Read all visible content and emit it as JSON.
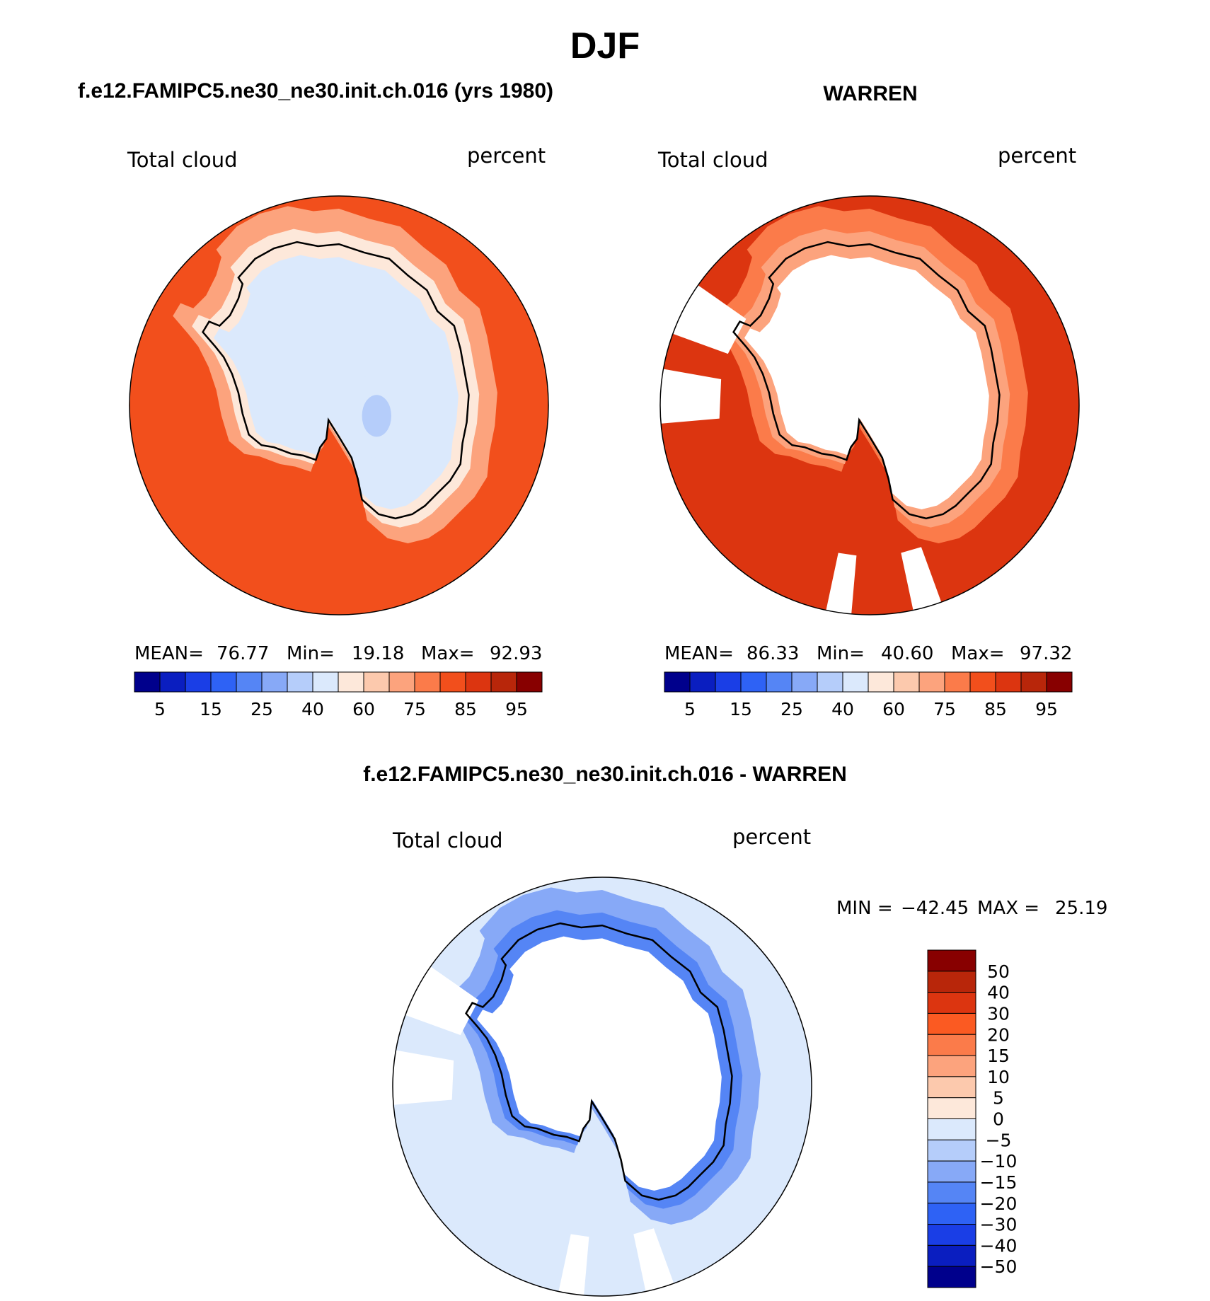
{
  "figure": {
    "title": "DJF"
  },
  "panels": [
    {
      "id": "model",
      "header": "f.e12.FAMIPC5.ne30_ne30.init.ch.016 (yrs 1980)",
      "left_label": "Total cloud",
      "right_label": "percent",
      "stats": {
        "mean_label": "MEAN=",
        "mean": "76.77",
        "min_label": "Min=",
        "min": "19.18",
        "max_label": "Max=",
        "max": "92.93"
      },
      "field": {
        "pole_value": 30,
        "coast_value": 58,
        "ocean_value": 84,
        "missing_sectors": false
      }
    },
    {
      "id": "obs",
      "header": "WARREN",
      "left_label": "Total cloud",
      "right_label": "percent",
      "stats": {
        "mean_label": "MEAN=",
        "mean": "86.33",
        "min_label": "Min=",
        "min": "40.60",
        "max_label": "Max=",
        "max": "97.32"
      },
      "field": {
        "pole_value": null,
        "coast_value": 70,
        "ocean_value": 88,
        "missing_sectors": true
      }
    },
    {
      "id": "diff",
      "header": "f.e12.FAMIPC5.ne30_ne30.init.ch.016 - WARREN",
      "left_label": "Total cloud",
      "right_label": "percent",
      "stats": {
        "min_label": "MIN =",
        "min": "−42.45",
        "max_label": "MAX =",
        "max": "25.19"
      },
      "field": {
        "pole_value": null,
        "coast_value": -18,
        "ocean_value": -3,
        "missing_sectors": true
      }
    }
  ],
  "colorbar_absolute": {
    "tick_labels": [
      "5",
      "15",
      "25",
      "40",
      "60",
      "75",
      "85",
      "95"
    ],
    "colors": [
      "#00008c",
      "#0a1ec0",
      "#1a3ee6",
      "#2e62f5",
      "#5585f5",
      "#87a9f7",
      "#b5cdfa",
      "#dbe9fc",
      "#fde8da",
      "#fcc9ad",
      "#fca37d",
      "#fb7b4a",
      "#f24f1c",
      "#dc3510",
      "#b8260a",
      "#880000"
    ]
  },
  "colorbar_difference": {
    "tick_labels": [
      "50",
      "40",
      "30",
      "20",
      "15",
      "10",
      "5",
      "0",
      "−5",
      "−10",
      "−15",
      "−20",
      "−30",
      "−40",
      "−50"
    ],
    "colors": [
      "#880000",
      "#b8260a",
      "#dc3510",
      "#fb5a22",
      "#fb7b4a",
      "#fca37d",
      "#fcc9ad",
      "#fde8da",
      "#dbe9fc",
      "#b5cdfa",
      "#87a9f7",
      "#5585f5",
      "#2e62f5",
      "#1a3ee6",
      "#0a1ec0",
      "#00008c"
    ]
  },
  "map": {
    "projection": "polar stereographic (South Pole)",
    "coastline": "Antarctica"
  }
}
